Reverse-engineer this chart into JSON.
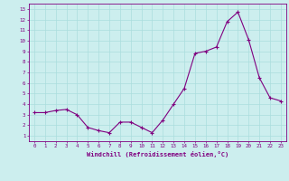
{
  "x": [
    0,
    1,
    2,
    3,
    4,
    5,
    6,
    7,
    8,
    9,
    10,
    11,
    12,
    13,
    14,
    15,
    16,
    17,
    18,
    19,
    20,
    21,
    22,
    23
  ],
  "y": [
    3.2,
    3.2,
    3.4,
    3.5,
    3.0,
    1.8,
    1.5,
    1.3,
    2.3,
    2.3,
    1.8,
    1.3,
    2.5,
    4.0,
    5.5,
    8.8,
    9.0,
    9.4,
    11.8,
    12.7,
    10.1,
    6.5,
    4.6,
    4.3
  ],
  "x_ticks": [
    0,
    1,
    2,
    3,
    4,
    5,
    6,
    7,
    8,
    9,
    10,
    11,
    12,
    13,
    14,
    15,
    16,
    17,
    18,
    19,
    20,
    21,
    22,
    23
  ],
  "y_ticks": [
    1,
    2,
    3,
    4,
    5,
    6,
    7,
    8,
    9,
    10,
    11,
    12,
    13
  ],
  "ylim": [
    0.5,
    13.5
  ],
  "xlim": [
    -0.5,
    23.5
  ],
  "xlabel": "Windchill (Refroidissement éolien,°C)",
  "line_color": "#800080",
  "marker": "+",
  "bg_color": "#cceeee",
  "grid_color": "#aadddd",
  "spine_color": "#800080"
}
